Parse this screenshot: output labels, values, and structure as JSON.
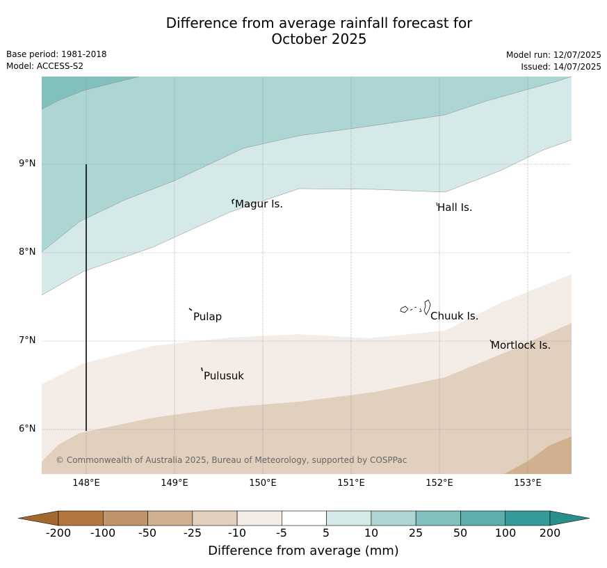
{
  "title_line1": "Difference from average rainfall forecast for",
  "title_line2": "October 2025",
  "meta_left": {
    "base_period": "Base period: 1981-2018",
    "model": "Model: ACCESS-S2"
  },
  "meta_right": {
    "model_run": "Model run: 12/07/2025",
    "issued": "Issued: 14/07/2025"
  },
  "lat_labels": [
    "9°N",
    "8°N",
    "7°N",
    "6°N"
  ],
  "lon_labels": [
    "148°E",
    "149°E",
    "150°E",
    "151°E",
    "152°E",
    "153°E"
  ],
  "places": [
    "Magur Is.",
    "Hall Is.",
    "Pulap",
    "Chuuk Is.",
    "Mortlock Is.",
    "Pulusuk"
  ],
  "copyright": "© Commonwealth of Australia 2025, Bureau of Meteorology, supported by COSPPac",
  "colorbar": {
    "labels": [
      "-200",
      "-100",
      "-50",
      "-25",
      "-10",
      "-5",
      "5",
      "10",
      "25",
      "50",
      "100",
      "200"
    ],
    "colors": [
      "#a2682f",
      "#b3773e",
      "#c0946a",
      "#d1b090",
      "#e2d0be",
      "#f4ede7",
      "#ffffff",
      "#d5e9e8",
      "#acd5d4",
      "#82c0be",
      "#5caeac",
      "#339c98",
      "#2a8f8b"
    ],
    "title": "Difference from average (mm)"
  }
}
